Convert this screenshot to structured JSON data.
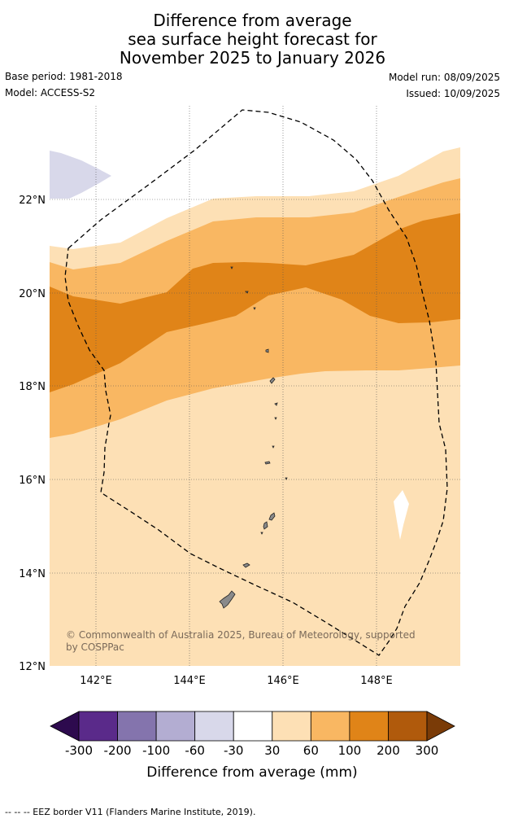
{
  "title": {
    "line1": "Difference from average",
    "line2": "sea surface height forecast for",
    "line3": "November 2025 to January 2026"
  },
  "info": {
    "base_period": "Base period: 1981-2018",
    "model": "Model: ACCESS-S2",
    "model_run": "Model run: 08/09/2025",
    "issued": "Issued: 10/09/2025"
  },
  "map": {
    "lon_ticks": [
      "142°E",
      "144°E",
      "146°E",
      "148°E"
    ],
    "lat_ticks": [
      "12°N",
      "14°N",
      "16°N",
      "18°N",
      "20°N",
      "22°N"
    ],
    "credit_line1": "© Commonwealth of Australia 2025, Bureau of Meteorology, supported",
    "credit_line2": "by COSPPac",
    "land_color": "#8a8a8a",
    "eez_style": "dashed black"
  },
  "colorbar": {
    "title": "Difference from average (mm)",
    "labels": [
      "-300",
      "-200",
      "-100",
      "-60",
      "-30",
      "30",
      "60",
      "100",
      "200",
      "300"
    ],
    "colors": [
      "#2d0a4e",
      "#5a2a8a",
      "#8474ad",
      "#b3add2",
      "#d8d8ea",
      "#ffffff",
      "#fde0b5",
      "#f9b762",
      "#e08418",
      "#b05a0c",
      "#7a3b07"
    ]
  },
  "footer": "--  --  -- EEZ border V11 (Flanders Marine Institute, 2019)."
}
